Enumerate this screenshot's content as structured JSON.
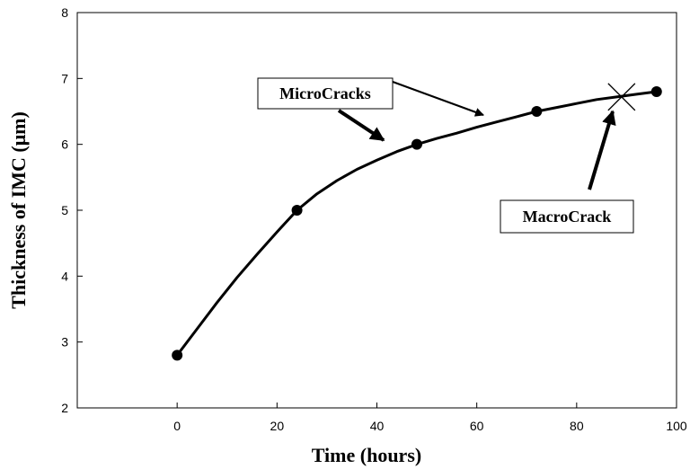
{
  "chart_data": {
    "type": "line",
    "xlabel": "Time (hours)",
    "ylabel": "Thickness of IMC (μm)",
    "xlim": [
      -20,
      100
    ],
    "ylim": [
      2,
      8
    ],
    "x_ticks": [
      0,
      20,
      40,
      60,
      80,
      100
    ],
    "y_ticks": [
      2,
      3,
      4,
      5,
      6,
      7,
      8
    ],
    "grid": false,
    "series": [
      {
        "markers": {
          "x": [
            0,
            24,
            48,
            72,
            96
          ],
          "y": [
            2.8,
            5.0,
            6.0,
            6.5,
            6.8
          ]
        },
        "curve": {
          "x": [
            0,
            4,
            8,
            12,
            16,
            20,
            24,
            28,
            32,
            36,
            40,
            44,
            48,
            52,
            56,
            60,
            64,
            68,
            72,
            76,
            80,
            84,
            88,
            92,
            96
          ],
          "y": [
            2.8,
            3.2,
            3.6,
            3.98,
            4.33,
            4.67,
            5.0,
            5.25,
            5.45,
            5.62,
            5.76,
            5.89,
            6.0,
            6.09,
            6.17,
            6.26,
            6.34,
            6.42,
            6.5,
            6.56,
            6.62,
            6.68,
            6.72,
            6.76,
            6.8
          ]
        },
        "color": "#000000"
      }
    ],
    "annotations": [
      {
        "text": "MicroCracks"
      },
      {
        "text": "MacroCrack"
      }
    ],
    "macrocrack_marker": {
      "x": 89,
      "y": 6.72,
      "shape": "x"
    }
  }
}
